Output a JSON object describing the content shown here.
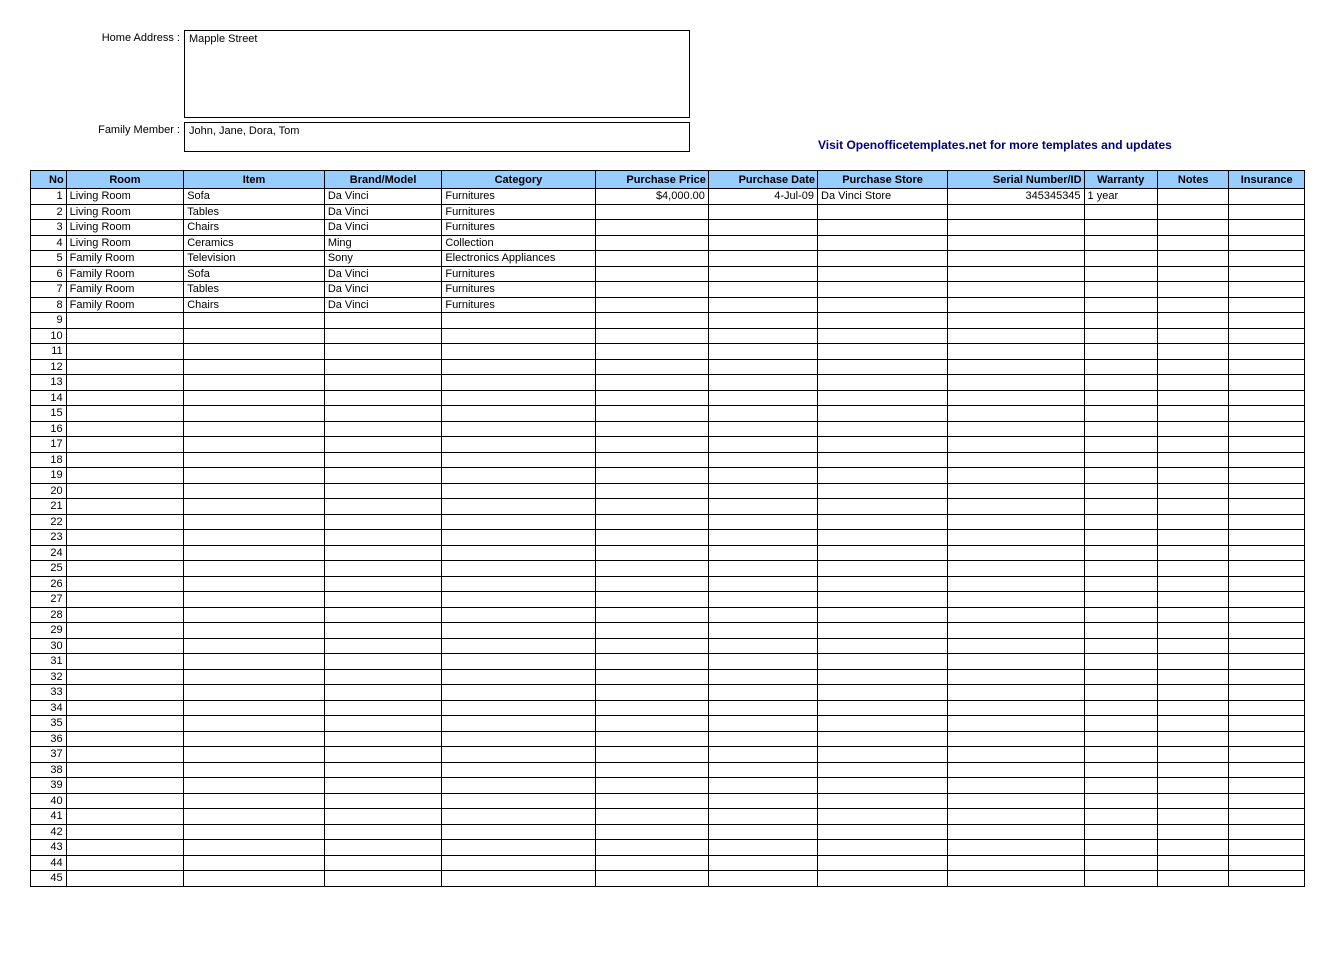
{
  "header": {
    "home_address_label": "Home Address :",
    "home_address_value": "Mapple Street",
    "family_member_label": "Family Member :",
    "family_member_value": "John, Jane, Dora, Tom",
    "link_text": "Visit Openofficetemplates.net for more templates and updates"
  },
  "table": {
    "columns": [
      {
        "key": "no",
        "label": "No",
        "class": "col-no"
      },
      {
        "key": "room",
        "label": "Room",
        "class": "col-room"
      },
      {
        "key": "item",
        "label": "Item",
        "class": "col-item"
      },
      {
        "key": "brand",
        "label": "Brand/Model",
        "class": "col-brand"
      },
      {
        "key": "category",
        "label": "Category",
        "class": "col-category"
      },
      {
        "key": "price",
        "label": "Purchase Price",
        "class": "col-price"
      },
      {
        "key": "date",
        "label": "Purchase Date",
        "class": "col-date"
      },
      {
        "key": "store",
        "label": "Purchase Store",
        "class": "col-store"
      },
      {
        "key": "serial",
        "label": "Serial Number/ID",
        "class": "col-serial"
      },
      {
        "key": "warranty",
        "label": "Warranty",
        "class": "col-warranty"
      },
      {
        "key": "notes",
        "label": "Notes",
        "class": "col-notes"
      },
      {
        "key": "insurance",
        "label": "Insurance",
        "class": "col-insurance"
      }
    ],
    "total_rows": 45,
    "rows": [
      {
        "no": "1",
        "room": "Living Room",
        "item": "Sofa",
        "brand": "Da Vinci",
        "category": "Furnitures",
        "price": "$4,000.00",
        "date": "4-Jul-09",
        "store": "Da Vinci Store",
        "serial": "345345345",
        "warranty": "1 year",
        "notes": "",
        "insurance": ""
      },
      {
        "no": "2",
        "room": "Living Room",
        "item": "Tables",
        "brand": "Da Vinci",
        "category": "Furnitures",
        "price": "",
        "date": "",
        "store": "",
        "serial": "",
        "warranty": "",
        "notes": "",
        "insurance": ""
      },
      {
        "no": "3",
        "room": "Living Room",
        "item": "Chairs",
        "brand": "Da Vinci",
        "category": "Furnitures",
        "price": "",
        "date": "",
        "store": "",
        "serial": "",
        "warranty": "",
        "notes": "",
        "insurance": ""
      },
      {
        "no": "4",
        "room": "Living Room",
        "item": "Ceramics",
        "brand": "Ming",
        "category": "Collection",
        "price": "",
        "date": "",
        "store": "",
        "serial": "",
        "warranty": "",
        "notes": "",
        "insurance": ""
      },
      {
        "no": "5",
        "room": "Family Room",
        "item": "Television",
        "brand": "Sony",
        "category": "Electronics Appliances",
        "price": "",
        "date": "",
        "store": "",
        "serial": "",
        "warranty": "",
        "notes": "",
        "insurance": ""
      },
      {
        "no": "6",
        "room": "Family Room",
        "item": "Sofa",
        "brand": "Da Vinci",
        "category": "Furnitures",
        "price": "",
        "date": "",
        "store": "",
        "serial": "",
        "warranty": "",
        "notes": "",
        "insurance": ""
      },
      {
        "no": "7",
        "room": "Family Room",
        "item": "Tables",
        "brand": "Da Vinci",
        "category": "Furnitures",
        "price": "",
        "date": "",
        "store": "",
        "serial": "",
        "warranty": "",
        "notes": "",
        "insurance": ""
      },
      {
        "no": "8",
        "room": "Family Room",
        "item": "Chairs",
        "brand": "Da Vinci",
        "category": "Furnitures",
        "price": "",
        "date": "",
        "store": "",
        "serial": "",
        "warranty": "",
        "notes": "",
        "insurance": ""
      }
    ]
  },
  "styling": {
    "header_bg": "#99ccff",
    "border_color": "#000000",
    "link_color": "#000080",
    "background_color": "#ffffff"
  }
}
